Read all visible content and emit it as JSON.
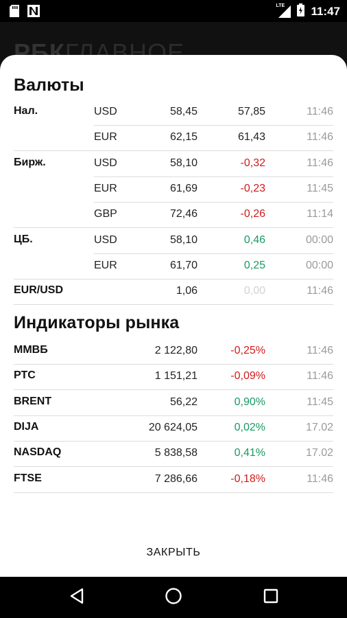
{
  "status_bar": {
    "time": "11:47",
    "network": "LTE",
    "icons": [
      "sd-card-icon",
      "n-notification-icon",
      "signal-icon",
      "battery-icon"
    ]
  },
  "background_app": {
    "logo_bold": "РБК",
    "logo_light": "ГЛАВНОЕ"
  },
  "dialog": {
    "currencies_title": "Валюты",
    "currency_rows": [
      {
        "group": "Нал.",
        "code": "USD",
        "value": "58,45",
        "change": "57,85",
        "change_tone": "neutral",
        "time": "11:46"
      },
      {
        "group": "",
        "code": "EUR",
        "value": "62,15",
        "change": "61,43",
        "change_tone": "neutral",
        "time": "11:46"
      },
      {
        "group": "Бирж.",
        "code": "USD",
        "value": "58,10",
        "change": "-0,32",
        "change_tone": "neg",
        "time": "11:46"
      },
      {
        "group": "",
        "code": "EUR",
        "value": "61,69",
        "change": "-0,23",
        "change_tone": "neg",
        "time": "11:45"
      },
      {
        "group": "",
        "code": "GBP",
        "value": "72,46",
        "change": "-0,26",
        "change_tone": "neg",
        "time": "11:14"
      },
      {
        "group": "ЦБ.",
        "code": "USD",
        "value": "58,10",
        "change": "0,46",
        "change_tone": "pos",
        "time": "00:00"
      },
      {
        "group": "",
        "code": "EUR",
        "value": "61,70",
        "change": "0,25",
        "change_tone": "pos",
        "time": "00:00"
      },
      {
        "group": "EUR/USD",
        "code": "",
        "value": "1,06",
        "change": "0,00",
        "change_tone": "muted",
        "time": "11:46"
      }
    ],
    "indicators_title": "Индикаторы рынка",
    "indicator_rows": [
      {
        "name": "ММВБ",
        "value": "2 122,80",
        "change": "-0,25%",
        "change_tone": "neg",
        "time": "11:46"
      },
      {
        "name": "РТС",
        "value": "1 151,21",
        "change": "-0,09%",
        "change_tone": "neg",
        "time": "11:46"
      },
      {
        "name": "BRENT",
        "value": "56,22",
        "change": "0,90%",
        "change_tone": "pos",
        "time": "11:45"
      },
      {
        "name": "DIJA",
        "value": "20 624,05",
        "change": "0,02%",
        "change_tone": "pos",
        "time": "17.02"
      },
      {
        "name": "NASDAQ",
        "value": "5 838,58",
        "change": "0,41%",
        "change_tone": "pos",
        "time": "17.02"
      },
      {
        "name": "FTSE",
        "value": "7 286,66",
        "change": "-0,18%",
        "change_tone": "neg",
        "time": "11:46"
      }
    ],
    "close_label": "ЗАКРЫТЬ"
  },
  "nav_bar": {
    "buttons": [
      "back-icon",
      "home-icon",
      "recents-icon"
    ]
  },
  "colors": {
    "negative": "#d11a1a",
    "positive": "#189a62",
    "muted": "#d2d2d2",
    "time": "#9a9a9a"
  }
}
